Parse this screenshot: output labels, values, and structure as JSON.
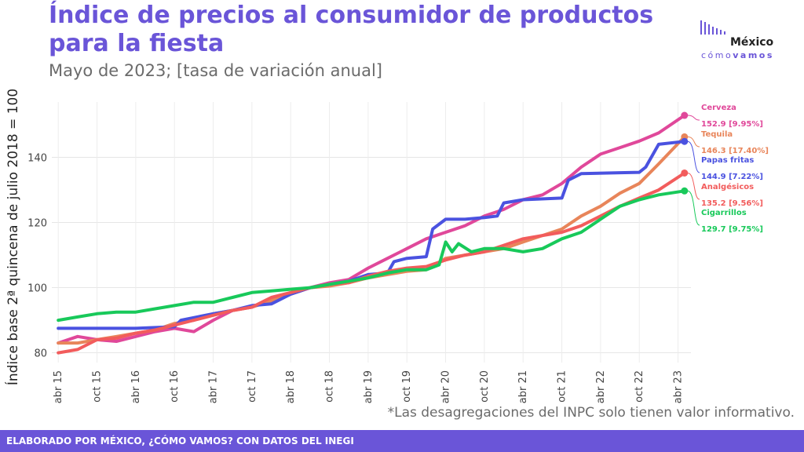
{
  "header": {
    "title": "Índice de precios al consumidor de productos para la fiesta",
    "subtitle": "Mayo de 2023; [tasa de variación anual]"
  },
  "logo": {
    "line1": "México",
    "line2a": "cómo",
    "line2b": "vamos"
  },
  "note": "*Las desagregaciones del INPC solo tienen valor informativo.",
  "footer": "ELABORADO POR MÉXICO, ¿CÓMO VAMOS? CON DATOS DEL INEGI",
  "colors": {
    "accent": "#6a55d8",
    "footer_bg": "#6a55d8"
  },
  "chart_data": {
    "type": "line",
    "ylabel": "Índice base 2ª quincena de julio 2018 = 100",
    "ylim": [
      77,
      157
    ],
    "yticks": [
      80,
      100,
      120,
      140
    ],
    "xlim": [
      "2015-04",
      "2023-05"
    ],
    "xticks": [
      "abr 15",
      "oct 15",
      "abr 16",
      "oct 16",
      "abr 17",
      "oct 17",
      "abr 18",
      "oct 18",
      "abr 19",
      "oct 19",
      "abr 20",
      "oct 20",
      "abr 21",
      "oct 21",
      "abr 22",
      "oct 22",
      "abr 23"
    ],
    "grid": true,
    "series": [
      {
        "name": "Cerveza",
        "color": "#e0489a",
        "label_value": "152.9 [9.95%]",
        "points": [
          [
            "2015-04",
            83
          ],
          [
            "2015-07",
            85
          ],
          [
            "2015-10",
            84
          ],
          [
            "2016-01",
            83.5
          ],
          [
            "2016-04",
            85
          ],
          [
            "2016-07",
            86.5
          ],
          [
            "2016-10",
            87.5
          ],
          [
            "2017-01",
            86.5
          ],
          [
            "2017-04",
            90
          ],
          [
            "2017-07",
            93
          ],
          [
            "2017-10",
            94
          ],
          [
            "2018-01",
            96
          ],
          [
            "2018-04",
            98
          ],
          [
            "2018-07",
            100
          ],
          [
            "2018-10",
            101.5
          ],
          [
            "2019-01",
            102.5
          ],
          [
            "2019-04",
            106
          ],
          [
            "2019-07",
            109
          ],
          [
            "2019-10",
            112
          ],
          [
            "2020-01",
            115
          ],
          [
            "2020-04",
            117
          ],
          [
            "2020-07",
            119
          ],
          [
            "2020-10",
            122
          ],
          [
            "2021-01",
            124
          ],
          [
            "2021-04",
            127
          ],
          [
            "2021-07",
            128.5
          ],
          [
            "2021-10",
            132
          ],
          [
            "2022-01",
            137
          ],
          [
            "2022-04",
            141
          ],
          [
            "2022-07",
            143
          ],
          [
            "2022-10",
            145
          ],
          [
            "2023-01",
            147.5
          ],
          [
            "2023-05",
            152.9
          ]
        ]
      },
      {
        "name": "Tequila",
        "color": "#e8855a",
        "label_value": "146.3 [17.40%]",
        "points": [
          [
            "2015-04",
            83
          ],
          [
            "2015-07",
            83
          ],
          [
            "2015-10",
            84
          ],
          [
            "2016-01",
            85
          ],
          [
            "2016-04",
            86
          ],
          [
            "2016-07",
            87
          ],
          [
            "2016-10",
            89
          ],
          [
            "2017-01",
            90
          ],
          [
            "2017-04",
            92
          ],
          [
            "2017-07",
            93
          ],
          [
            "2017-10",
            94
          ],
          [
            "2018-01",
            96
          ],
          [
            "2018-04",
            98
          ],
          [
            "2018-07",
            100
          ],
          [
            "2018-10",
            100.5
          ],
          [
            "2019-01",
            101.5
          ],
          [
            "2019-04",
            103
          ],
          [
            "2019-07",
            104
          ],
          [
            "2019-10",
            105
          ],
          [
            "2020-01",
            105.5
          ],
          [
            "2020-04",
            109
          ],
          [
            "2020-07",
            110
          ],
          [
            "2020-10",
            111
          ],
          [
            "2021-01",
            112
          ],
          [
            "2021-04",
            114
          ],
          [
            "2021-07",
            116
          ],
          [
            "2021-10",
            118
          ],
          [
            "2022-01",
            122
          ],
          [
            "2022-04",
            125
          ],
          [
            "2022-07",
            129
          ],
          [
            "2022-10",
            132
          ],
          [
            "2023-01",
            138
          ],
          [
            "2023-05",
            146.3
          ]
        ]
      },
      {
        "name": "Papas fritas",
        "color": "#4a52e0",
        "label_value": "144.9 [7.22%]",
        "points": [
          [
            "2015-04",
            87.5
          ],
          [
            "2015-10",
            87.5
          ],
          [
            "2016-04",
            87.5
          ],
          [
            "2016-10",
            88
          ],
          [
            "2016-11",
            90
          ],
          [
            "2017-04",
            92
          ],
          [
            "2017-07",
            93
          ],
          [
            "2017-10",
            94.5
          ],
          [
            "2018-01",
            95
          ],
          [
            "2018-04",
            98
          ],
          [
            "2018-07",
            100
          ],
          [
            "2018-10",
            101
          ],
          [
            "2019-01",
            102
          ],
          [
            "2019-04",
            104
          ],
          [
            "2019-07",
            104.5
          ],
          [
            "2019-08",
            108
          ],
          [
            "2019-10",
            109
          ],
          [
            "2020-01",
            109.5
          ],
          [
            "2020-02",
            118
          ],
          [
            "2020-04",
            121
          ],
          [
            "2020-07",
            121
          ],
          [
            "2020-10",
            121.5
          ],
          [
            "2020-12",
            122
          ],
          [
            "2021-01",
            126
          ],
          [
            "2021-04",
            127
          ],
          [
            "2021-10",
            127.5
          ],
          [
            "2021-11",
            133
          ],
          [
            "2022-01",
            135
          ],
          [
            "2022-07",
            135.3
          ],
          [
            "2022-10",
            135.4
          ],
          [
            "2022-11",
            137
          ],
          [
            "2023-01",
            144
          ],
          [
            "2023-05",
            144.9
          ]
        ]
      },
      {
        "name": "Analgésicos",
        "color": "#f25c5c",
        "label_value": "135.2 [9.56%]",
        "points": [
          [
            "2015-04",
            80
          ],
          [
            "2015-07",
            81
          ],
          [
            "2015-10",
            84
          ],
          [
            "2016-01",
            84.5
          ],
          [
            "2016-04",
            86
          ],
          [
            "2016-07",
            87
          ],
          [
            "2016-10",
            88.5
          ],
          [
            "2017-01",
            90
          ],
          [
            "2017-04",
            91.5
          ],
          [
            "2017-07",
            93
          ],
          [
            "2017-10",
            94
          ],
          [
            "2018-01",
            97
          ],
          [
            "2018-04",
            98.5
          ],
          [
            "2018-07",
            100
          ],
          [
            "2018-10",
            101
          ],
          [
            "2019-01",
            101.5
          ],
          [
            "2019-04",
            103.5
          ],
          [
            "2019-07",
            105
          ],
          [
            "2019-10",
            106
          ],
          [
            "2020-01",
            106.5
          ],
          [
            "2020-04",
            108.5
          ],
          [
            "2020-07",
            110
          ],
          [
            "2020-10",
            111
          ],
          [
            "2021-01",
            113
          ],
          [
            "2021-04",
            115
          ],
          [
            "2021-07",
            116
          ],
          [
            "2021-10",
            117
          ],
          [
            "2022-01",
            119
          ],
          [
            "2022-04",
            122
          ],
          [
            "2022-07",
            125
          ],
          [
            "2022-10",
            127.5
          ],
          [
            "2023-01",
            130
          ],
          [
            "2023-05",
            135.2
          ]
        ]
      },
      {
        "name": "Cigarrillos",
        "color": "#18c95a",
        "label_value": "129.7 [9.75%]",
        "points": [
          [
            "2015-04",
            90
          ],
          [
            "2015-07",
            91
          ],
          [
            "2015-10",
            92
          ],
          [
            "2016-01",
            92.5
          ],
          [
            "2016-04",
            92.5
          ],
          [
            "2016-07",
            93.5
          ],
          [
            "2016-10",
            94.5
          ],
          [
            "2017-01",
            95.5
          ],
          [
            "2017-04",
            95.5
          ],
          [
            "2017-07",
            97
          ],
          [
            "2017-10",
            98.5
          ],
          [
            "2018-01",
            99
          ],
          [
            "2018-04",
            99.5
          ],
          [
            "2018-07",
            100
          ],
          [
            "2018-10",
            101
          ],
          [
            "2019-01",
            102
          ],
          [
            "2019-04",
            103
          ],
          [
            "2019-07",
            104.5
          ],
          [
            "2019-10",
            105.5
          ],
          [
            "2020-01",
            105.5
          ],
          [
            "2020-03",
            107
          ],
          [
            "2020-04",
            114
          ],
          [
            "2020-05",
            111
          ],
          [
            "2020-06",
            113.5
          ],
          [
            "2020-08",
            111
          ],
          [
            "2020-10",
            112
          ],
          [
            "2021-01",
            112
          ],
          [
            "2021-04",
            111
          ],
          [
            "2021-07",
            112
          ],
          [
            "2021-10",
            115
          ],
          [
            "2022-01",
            117
          ],
          [
            "2022-04",
            121
          ],
          [
            "2022-07",
            125
          ],
          [
            "2022-10",
            127
          ],
          [
            "2023-01",
            128.5
          ],
          [
            "2023-05",
            129.7
          ]
        ]
      }
    ]
  }
}
